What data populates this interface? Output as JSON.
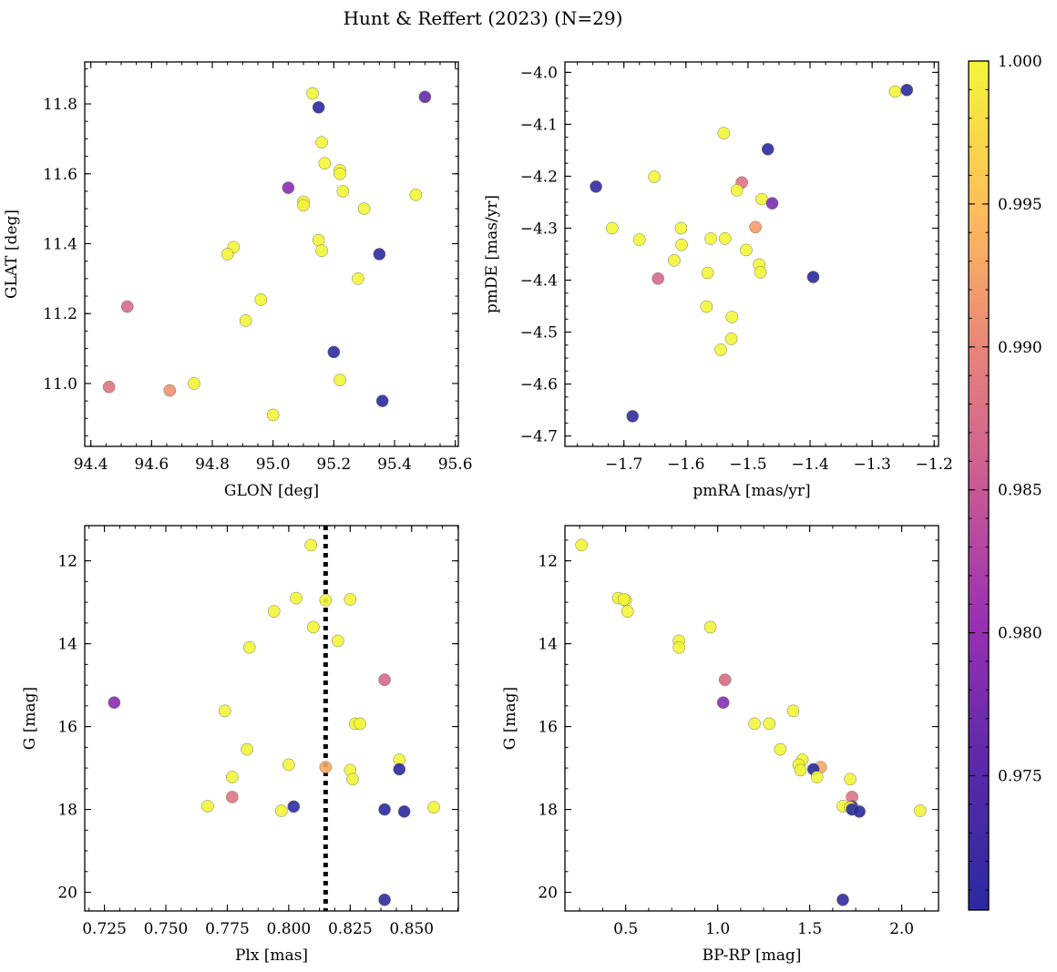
{
  "figure": {
    "title": "Hunt & Reffert (2023) (N=29)"
  },
  "colorbar": {
    "min": 0.9703,
    "max": 1.0,
    "ticks": [
      0.975,
      0.98,
      0.985,
      0.99,
      0.995,
      1.0
    ],
    "tick_labels": [
      "0.975",
      "0.980",
      "0.985",
      "0.990",
      "0.995",
      "1.000"
    ],
    "colormap": "plasma"
  },
  "chart_data": [
    {
      "type": "scatter",
      "xlabel": "GLON [deg]",
      "ylabel": "GLAT [deg]",
      "xlim": [
        94.38,
        95.61
      ],
      "ylim": [
        10.82,
        11.92
      ],
      "xticks": [
        94.4,
        94.6,
        94.8,
        95.0,
        95.2,
        95.4,
        95.6
      ],
      "xtick_labels": [
        "94.4",
        "94.6",
        "94.8",
        "95.0",
        "95.2",
        "95.4",
        "95.6"
      ],
      "yticks": [
        11.0,
        11.2,
        11.4,
        11.6,
        11.8
      ],
      "ytick_labels": [
        "11.0",
        "11.2",
        "11.4",
        "11.6",
        "11.8"
      ],
      "points": [
        {
          "x": 95.13,
          "y": 11.83,
          "c": 1.0
        },
        {
          "x": 95.15,
          "y": 11.79,
          "c": 0.97
        },
        {
          "x": 95.5,
          "y": 11.82,
          "c": 0.976
        },
        {
          "x": 95.16,
          "y": 11.69,
          "c": 1.0
        },
        {
          "x": 95.17,
          "y": 11.63,
          "c": 1.0
        },
        {
          "x": 95.22,
          "y": 11.61,
          "c": 1.0
        },
        {
          "x": 95.22,
          "y": 11.6,
          "c": 1.0
        },
        {
          "x": 95.05,
          "y": 11.56,
          "c": 0.979
        },
        {
          "x": 95.23,
          "y": 11.55,
          "c": 1.0
        },
        {
          "x": 95.47,
          "y": 11.54,
          "c": 1.0
        },
        {
          "x": 95.1,
          "y": 11.52,
          "c": 1.0
        },
        {
          "x": 95.1,
          "y": 11.51,
          "c": 1.0
        },
        {
          "x": 95.3,
          "y": 11.5,
          "c": 1.0
        },
        {
          "x": 95.15,
          "y": 11.41,
          "c": 1.0
        },
        {
          "x": 94.87,
          "y": 11.39,
          "c": 1.0
        },
        {
          "x": 95.16,
          "y": 11.38,
          "c": 1.0
        },
        {
          "x": 95.35,
          "y": 11.37,
          "c": 0.97
        },
        {
          "x": 94.85,
          "y": 11.37,
          "c": 1.0
        },
        {
          "x": 95.28,
          "y": 11.3,
          "c": 1.0
        },
        {
          "x": 94.96,
          "y": 11.24,
          "c": 1.0
        },
        {
          "x": 94.52,
          "y": 11.22,
          "c": 0.987
        },
        {
          "x": 94.91,
          "y": 11.18,
          "c": 1.0
        },
        {
          "x": 95.2,
          "y": 11.09,
          "c": 0.971
        },
        {
          "x": 95.22,
          "y": 11.01,
          "c": 1.0
        },
        {
          "x": 94.74,
          "y": 11.0,
          "c": 1.0
        },
        {
          "x": 94.46,
          "y": 10.99,
          "c": 0.988
        },
        {
          "x": 94.66,
          "y": 10.98,
          "c": 0.991
        },
        {
          "x": 95.36,
          "y": 10.95,
          "c": 0.97
        },
        {
          "x": 95.0,
          "y": 10.91,
          "c": 1.0
        }
      ]
    },
    {
      "type": "scatter",
      "xlabel": "pmRA [mas/yr]",
      "ylabel": "pmDE [mas/yr]",
      "xlim": [
        -1.795,
        -1.193
      ],
      "ylim": [
        -4.72,
        -3.98
      ],
      "xticks": [
        -1.7,
        -1.6,
        -1.5,
        -1.4,
        -1.3,
        -1.2
      ],
      "xtick_labels": [
        "−1.7",
        "−1.6",
        "−1.5",
        "−1.4",
        "−1.3",
        "−1.2"
      ],
      "yticks": [
        -4.7,
        -4.6,
        -4.5,
        -4.4,
        -4.3,
        -4.2,
        -4.1,
        -4.0
      ],
      "ytick_labels": [
        "−4.7",
        "−4.6",
        "−4.5",
        "−4.4",
        "−4.3",
        "−4.2",
        "−4.1",
        "−4.0"
      ],
      "points": [
        {
          "x": -1.263,
          "y": -4.037,
          "c": 1.0
        },
        {
          "x": -1.244,
          "y": -4.034,
          "c": 0.97
        },
        {
          "x": -1.539,
          "y": -4.117,
          "c": 1.0
        },
        {
          "x": -1.468,
          "y": -4.148,
          "c": 0.97
        },
        {
          "x": -1.745,
          "y": -4.22,
          "c": 0.971
        },
        {
          "x": -1.651,
          "y": -4.201,
          "c": 1.0
        },
        {
          "x": -1.51,
          "y": -4.212,
          "c": 0.988
        },
        {
          "x": -1.518,
          "y": -4.227,
          "c": 1.0
        },
        {
          "x": -1.478,
          "y": -4.244,
          "c": 1.0
        },
        {
          "x": -1.461,
          "y": -4.252,
          "c": 0.978
        },
        {
          "x": -1.719,
          "y": -4.3,
          "c": 1.0
        },
        {
          "x": -1.608,
          "y": -4.3,
          "c": 1.0
        },
        {
          "x": -1.488,
          "y": -4.298,
          "c": 0.992
        },
        {
          "x": -1.675,
          "y": -4.322,
          "c": 1.0
        },
        {
          "x": -1.56,
          "y": -4.32,
          "c": 1.0
        },
        {
          "x": -1.537,
          "y": -4.32,
          "c": 1.0
        },
        {
          "x": -1.607,
          "y": -4.332,
          "c": 1.0
        },
        {
          "x": -1.503,
          "y": -4.342,
          "c": 1.0
        },
        {
          "x": -1.619,
          "y": -4.362,
          "c": 1.0
        },
        {
          "x": -1.482,
          "y": -4.37,
          "c": 1.0
        },
        {
          "x": -1.565,
          "y": -4.386,
          "c": 1.0
        },
        {
          "x": -1.48,
          "y": -4.385,
          "c": 1.0
        },
        {
          "x": -1.645,
          "y": -4.397,
          "c": 0.987
        },
        {
          "x": -1.395,
          "y": -4.394,
          "c": 0.97
        },
        {
          "x": -1.567,
          "y": -4.451,
          "c": 1.0
        },
        {
          "x": -1.526,
          "y": -4.471,
          "c": 1.0
        },
        {
          "x": -1.527,
          "y": -4.513,
          "c": 1.0
        },
        {
          "x": -1.544,
          "y": -4.534,
          "c": 1.0
        },
        {
          "x": -1.686,
          "y": -4.662,
          "c": 0.971
        }
      ]
    },
    {
      "type": "scatter",
      "xlabel": "Plx [mas]",
      "ylabel": "G [mag]",
      "xlim": [
        0.717,
        0.869
      ],
      "ylim": [
        20.45,
        11.15
      ],
      "xticks": [
        0.725,
        0.75,
        0.775,
        0.8,
        0.825,
        0.85
      ],
      "xtick_labels": [
        "0.725",
        "0.750",
        "0.775",
        "0.800",
        "0.825",
        "0.850"
      ],
      "yticks": [
        12,
        14,
        16,
        18,
        20
      ],
      "ytick_labels": [
        "12",
        "14",
        "16",
        "18",
        "20"
      ],
      "vline": 0.815,
      "points": [
        {
          "x": 0.809,
          "y": 11.62,
          "c": 1.0
        },
        {
          "x": 0.803,
          "y": 12.9,
          "c": 1.0
        },
        {
          "x": 0.815,
          "y": 12.95,
          "c": 1.0
        },
        {
          "x": 0.825,
          "y": 12.93,
          "c": 1.0
        },
        {
          "x": 0.794,
          "y": 13.22,
          "c": 1.0
        },
        {
          "x": 0.81,
          "y": 13.6,
          "c": 1.0
        },
        {
          "x": 0.82,
          "y": 13.93,
          "c": 1.0
        },
        {
          "x": 0.784,
          "y": 14.09,
          "c": 1.0
        },
        {
          "x": 0.839,
          "y": 14.87,
          "c": 0.987
        },
        {
          "x": 0.729,
          "y": 15.42,
          "c": 0.979
        },
        {
          "x": 0.774,
          "y": 15.62,
          "c": 1.0
        },
        {
          "x": 0.827,
          "y": 15.93,
          "c": 1.0
        },
        {
          "x": 0.829,
          "y": 15.93,
          "c": 1.0
        },
        {
          "x": 0.783,
          "y": 16.55,
          "c": 1.0
        },
        {
          "x": 0.845,
          "y": 16.8,
          "c": 1.0
        },
        {
          "x": 0.8,
          "y": 16.92,
          "c": 1.0
        },
        {
          "x": 0.815,
          "y": 16.98,
          "c": 0.993
        },
        {
          "x": 0.845,
          "y": 17.03,
          "c": 0.97
        },
        {
          "x": 0.825,
          "y": 17.05,
          "c": 1.0
        },
        {
          "x": 0.777,
          "y": 17.22,
          "c": 1.0
        },
        {
          "x": 0.826,
          "y": 17.27,
          "c": 1.0
        },
        {
          "x": 0.777,
          "y": 17.7,
          "c": 0.988
        },
        {
          "x": 0.767,
          "y": 17.92,
          "c": 1.0
        },
        {
          "x": 0.802,
          "y": 17.93,
          "c": 0.971
        },
        {
          "x": 0.859,
          "y": 17.95,
          "c": 1.0
        },
        {
          "x": 0.839,
          "y": 18.0,
          "c": 0.97
        },
        {
          "x": 0.797,
          "y": 18.03,
          "c": 1.0
        },
        {
          "x": 0.847,
          "y": 18.05,
          "c": 0.97
        },
        {
          "x": 0.839,
          "y": 20.18,
          "c": 0.971
        }
      ]
    },
    {
      "type": "scatter",
      "xlabel": "BP-RP [mag]",
      "ylabel": "G [mag]",
      "xlim": [
        0.17,
        2.2
      ],
      "ylim": [
        20.45,
        11.15
      ],
      "xticks": [
        0.5,
        1.0,
        1.5,
        2.0
      ],
      "xtick_labels": [
        "0.5",
        "1.0",
        "1.5",
        "2.0"
      ],
      "yticks": [
        12,
        14,
        16,
        18,
        20
      ],
      "ytick_labels": [
        "12",
        "14",
        "16",
        "18",
        "20"
      ],
      "points": [
        {
          "x": 0.26,
          "y": 11.62,
          "c": 1.0
        },
        {
          "x": 0.46,
          "y": 12.9,
          "c": 1.0
        },
        {
          "x": 0.5,
          "y": 12.95,
          "c": 1.0
        },
        {
          "x": 0.49,
          "y": 12.93,
          "c": 1.0
        },
        {
          "x": 0.51,
          "y": 13.22,
          "c": 1.0
        },
        {
          "x": 0.96,
          "y": 13.6,
          "c": 1.0
        },
        {
          "x": 0.79,
          "y": 13.93,
          "c": 1.0
        },
        {
          "x": 0.79,
          "y": 14.09,
          "c": 1.0
        },
        {
          "x": 1.04,
          "y": 14.87,
          "c": 0.987
        },
        {
          "x": 1.03,
          "y": 15.42,
          "c": 0.979
        },
        {
          "x": 1.41,
          "y": 15.62,
          "c": 1.0
        },
        {
          "x": 1.2,
          "y": 15.93,
          "c": 1.0
        },
        {
          "x": 1.28,
          "y": 15.93,
          "c": 1.0
        },
        {
          "x": 1.34,
          "y": 16.55,
          "c": 1.0
        },
        {
          "x": 1.46,
          "y": 16.8,
          "c": 1.0
        },
        {
          "x": 1.44,
          "y": 16.92,
          "c": 1.0
        },
        {
          "x": 1.56,
          "y": 16.98,
          "c": 0.993
        },
        {
          "x": 1.52,
          "y": 17.03,
          "c": 0.97
        },
        {
          "x": 1.45,
          "y": 17.05,
          "c": 1.0
        },
        {
          "x": 1.54,
          "y": 17.22,
          "c": 1.0
        },
        {
          "x": 1.72,
          "y": 17.27,
          "c": 1.0
        },
        {
          "x": 1.73,
          "y": 17.7,
          "c": 0.988
        },
        {
          "x": 1.68,
          "y": 17.92,
          "c": 1.0
        },
        {
          "x": 1.73,
          "y": 17.93,
          "c": 0.971
        },
        {
          "x": 1.72,
          "y": 17.95,
          "c": 1.0
        },
        {
          "x": 1.73,
          "y": 18.0,
          "c": 0.97
        },
        {
          "x": 2.1,
          "y": 18.03,
          "c": 1.0
        },
        {
          "x": 1.77,
          "y": 18.05,
          "c": 0.97
        },
        {
          "x": 1.68,
          "y": 20.18,
          "c": 0.971
        }
      ]
    }
  ]
}
